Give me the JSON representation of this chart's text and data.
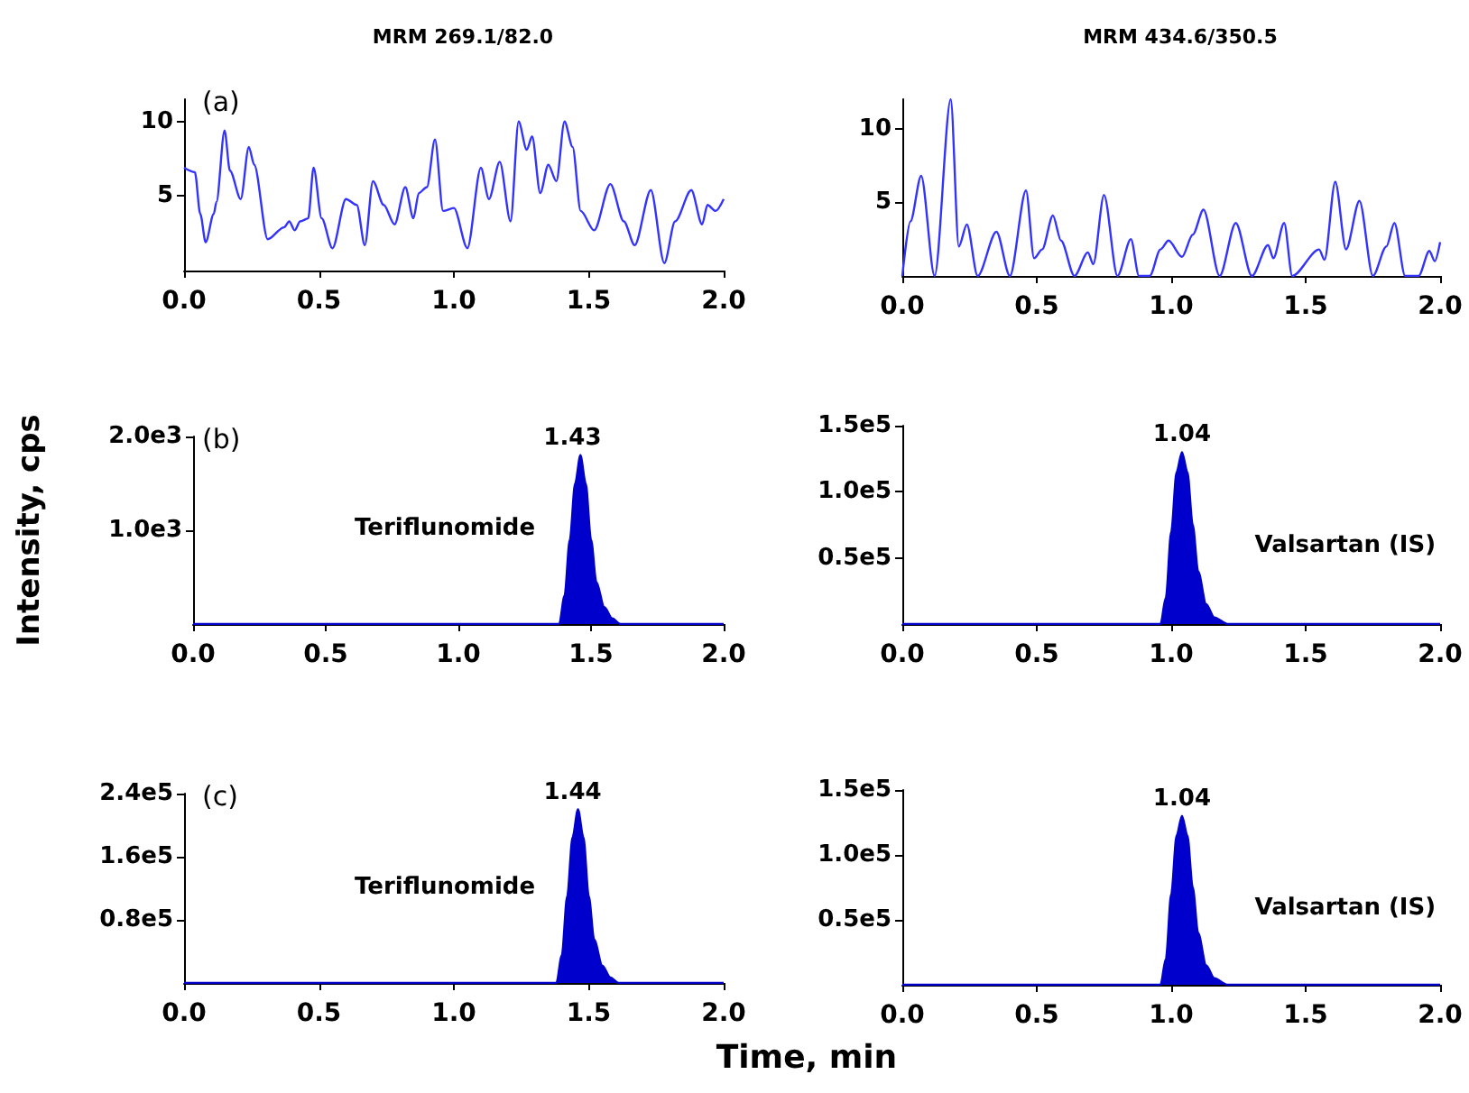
{
  "chart_data": [
    {
      "type": "line",
      "title": "MRM 269.1/82.0",
      "annotations": [
        "(a)"
      ],
      "xlim": [
        0,
        2
      ],
      "xticks": [
        {
          "value": 0,
          "label": "0.0"
        },
        {
          "value": 0.5,
          "label": "0.5"
        },
        {
          "value": 1,
          "label": "1.0"
        },
        {
          "value": 1.5,
          "label": "1.5"
        },
        {
          "value": 2,
          "label": "2.0"
        }
      ],
      "ylim": [
        0,
        11.5
      ],
      "yticks": [
        {
          "value": 5,
          "label": "5"
        },
        {
          "value": 10,
          "label": "10"
        }
      ],
      "grid": false,
      "series": [
        {
          "color": "#3333ff",
          "x": [
            0,
            0.04,
            0.06,
            0.08,
            0.11,
            0.12,
            0.15,
            0.17,
            0.21,
            0.24,
            0.26,
            0.31,
            0.37,
            0.39,
            0.41,
            0.43,
            0.46,
            0.48,
            0.51,
            0.55,
            0.6,
            0.64,
            0.67,
            0.7,
            0.74,
            0.78,
            0.82,
            0.85,
            0.87,
            0.9,
            0.93,
            0.96,
            1.0,
            1.05,
            1.1,
            1.13,
            1.17,
            1.21,
            1.24,
            1.27,
            1.29,
            1.32,
            1.35,
            1.38,
            1.41,
            1.44,
            1.47,
            1.52,
            1.58,
            1.63,
            1.67,
            1.73,
            1.78,
            1.82,
            1.88,
            1.92,
            1.94,
            1.97,
            2.0
          ],
          "values": [
            6.9,
            6.6,
            3.8,
            1.9,
            3.8,
            4.6,
            9.4,
            6.7,
            4.8,
            8.3,
            7.1,
            2.1,
            2.9,
            3.3,
            2.7,
            3.3,
            3.5,
            6.9,
            3.5,
            1.5,
            4.8,
            4.4,
            1.7,
            6.0,
            4.4,
            3.1,
            5.6,
            3.5,
            5.2,
            5.6,
            8.8,
            4.0,
            4.2,
            1.5,
            6.9,
            4.8,
            7.3,
            3.3,
            10.0,
            8.1,
            9.0,
            5.2,
            7.1,
            6.0,
            10.0,
            8.3,
            4.0,
            2.7,
            5.8,
            3.3,
            1.7,
            5.4,
            0.5,
            3.3,
            5.4,
            3.1,
            4.4,
            4.0,
            4.8
          ]
        }
      ]
    },
    {
      "type": "line",
      "title": "MRM 434.6/350.5",
      "xlim": [
        0,
        2
      ],
      "xticks": [
        {
          "value": 0,
          "label": "0.0"
        },
        {
          "value": 0.5,
          "label": "0.5"
        },
        {
          "value": 1,
          "label": "1.0"
        },
        {
          "value": 1.5,
          "label": "1.5"
        },
        {
          "value": 2,
          "label": "2.0"
        }
      ],
      "ylim": [
        0,
        12
      ],
      "yticks": [
        {
          "value": 5,
          "label": "5"
        },
        {
          "value": 10,
          "label": "10"
        }
      ],
      "grid": false,
      "series": [
        {
          "color": "#3333ff",
          "x": [
            0,
            0.03,
            0.07,
            0.12,
            0.18,
            0.21,
            0.24,
            0.28,
            0.35,
            0.4,
            0.46,
            0.49,
            0.52,
            0.56,
            0.59,
            0.64,
            0.69,
            0.71,
            0.75,
            0.8,
            0.85,
            0.88,
            0.92,
            0.96,
            0.99,
            1.04,
            1.08,
            1.12,
            1.18,
            1.24,
            1.3,
            1.36,
            1.38,
            1.42,
            1.45,
            1.55,
            1.57,
            1.61,
            1.65,
            1.7,
            1.75,
            1.8,
            1.83,
            1.87,
            1.92,
            1.96,
            1.98,
            2.0
          ],
          "values": [
            0,
            3.7,
            6.8,
            0,
            12.0,
            2.0,
            3.5,
            0,
            3.0,
            0,
            5.8,
            1.2,
            1.8,
            4.1,
            2.4,
            0,
            1.6,
            0.8,
            5.5,
            0,
            2.5,
            0,
            0,
            1.8,
            2.4,
            1.3,
            2.8,
            4.5,
            0,
            3.6,
            0,
            2.1,
            1.2,
            3.6,
            0,
            1.8,
            1.1,
            6.4,
            1.8,
            5.1,
            0,
            2.0,
            3.6,
            0,
            0,
            1.7,
            1.0,
            2.3
          ]
        }
      ]
    },
    {
      "type": "area",
      "ylabel": "Intensity, cps",
      "annotations": [
        "(b)",
        {
          "text": "1.43",
          "x": 1.43,
          "y": 1800
        },
        "Teriflunomide"
      ],
      "xlim": [
        0,
        2
      ],
      "xticks": [
        {
          "value": 0,
          "label": "0.0"
        },
        {
          "value": 0.5,
          "label": "0.5"
        },
        {
          "value": 1,
          "label": "1.0"
        },
        {
          "value": 1.5,
          "label": "1.5"
        },
        {
          "value": 2,
          "label": "2.0"
        }
      ],
      "ylim": [
        0,
        2000
      ],
      "yticks": [
        {
          "value": 1000,
          "label": "1.0e3"
        },
        {
          "value": 2000,
          "label": "2.0e3"
        }
      ],
      "grid": false,
      "series": [
        {
          "color": "#0000cc",
          "x": [
            0,
            1.38,
            1.4,
            1.42,
            1.44,
            1.46,
            1.48,
            1.5,
            1.52,
            1.55,
            1.58,
            1.61,
            2.0
          ],
          "values": [
            0,
            0,
            300,
            900,
            1500,
            1800,
            1500,
            900,
            450,
            180,
            60,
            0,
            0
          ]
        }
      ]
    },
    {
      "type": "area",
      "annotations": [
        {
          "text": "1.04",
          "x": 1.04,
          "y": 130000
        },
        "Valsartan (IS)"
      ],
      "xlim": [
        0,
        2
      ],
      "xticks": [
        {
          "value": 0,
          "label": "0.0"
        },
        {
          "value": 0.5,
          "label": "0.5"
        },
        {
          "value": 1,
          "label": "1.0"
        },
        {
          "value": 1.5,
          "label": "1.5"
        },
        {
          "value": 2,
          "label": "2.0"
        }
      ],
      "ylim": [
        0,
        150000
      ],
      "yticks": [
        {
          "value": 50000,
          "label": "0.5e5"
        },
        {
          "value": 100000,
          "label": "1.0e5"
        },
        {
          "value": 150000,
          "label": "1.5e5"
        }
      ],
      "grid": false,
      "series": [
        {
          "color": "#0000cc",
          "x": [
            0,
            0.96,
            0.98,
            1.0,
            1.02,
            1.04,
            1.06,
            1.08,
            1.1,
            1.13,
            1.16,
            1.21,
            2.0
          ],
          "values": [
            0,
            0,
            20000,
            70000,
            115000,
            130000,
            115000,
            75000,
            40000,
            15000,
            5000,
            0,
            0
          ]
        }
      ]
    },
    {
      "type": "area",
      "xlabel": "Time, min",
      "annotations": [
        "(c)",
        {
          "text": "1.44",
          "x": 1.44,
          "y": 220000
        },
        "Teriflunomide"
      ],
      "xlim": [
        0,
        2
      ],
      "xticks": [
        {
          "value": 0,
          "label": "0.0"
        },
        {
          "value": 0.5,
          "label": "0.5"
        },
        {
          "value": 1,
          "label": "1.0"
        },
        {
          "value": 1.5,
          "label": "1.5"
        },
        {
          "value": 2,
          "label": "2.0"
        }
      ],
      "ylim": [
        0,
        240000
      ],
      "yticks": [
        {
          "value": 80000,
          "label": "0.8e5"
        },
        {
          "value": 160000,
          "label": "1.6e5"
        },
        {
          "value": 240000,
          "label": "2.4e5"
        }
      ],
      "grid": false,
      "series": [
        {
          "color": "#0000cc",
          "x": [
            0,
            1.38,
            1.4,
            1.42,
            1.44,
            1.46,
            1.48,
            1.5,
            1.52,
            1.55,
            1.58,
            1.61,
            2.0
          ],
          "values": [
            0,
            0,
            35000,
            110000,
            185000,
            220000,
            185000,
            110000,
            55000,
            22000,
            7000,
            0,
            0
          ]
        }
      ]
    },
    {
      "type": "area",
      "annotations": [
        {
          "text": "1.04",
          "x": 1.04,
          "y": 130000
        },
        "Valsartan (IS)"
      ],
      "xlim": [
        0,
        2
      ],
      "xticks": [
        {
          "value": 0,
          "label": "0.0"
        },
        {
          "value": 0.5,
          "label": "0.5"
        },
        {
          "value": 1,
          "label": "1.0"
        },
        {
          "value": 1.5,
          "label": "1.5"
        },
        {
          "value": 2,
          "label": "2.0"
        }
      ],
      "ylim": [
        0,
        150000
      ],
      "yticks": [
        {
          "value": 50000,
          "label": "0.5e5"
        },
        {
          "value": 100000,
          "label": "1.0e5"
        },
        {
          "value": 150000,
          "label": "1.5e5"
        }
      ],
      "grid": false,
      "series": [
        {
          "color": "#0000cc",
          "x": [
            0,
            0.96,
            0.98,
            1.0,
            1.02,
            1.04,
            1.06,
            1.08,
            1.1,
            1.13,
            1.16,
            1.21,
            2.0
          ],
          "values": [
            0,
            0,
            20000,
            70000,
            115000,
            130000,
            115000,
            75000,
            40000,
            15000,
            5000,
            0,
            0
          ]
        }
      ]
    }
  ]
}
